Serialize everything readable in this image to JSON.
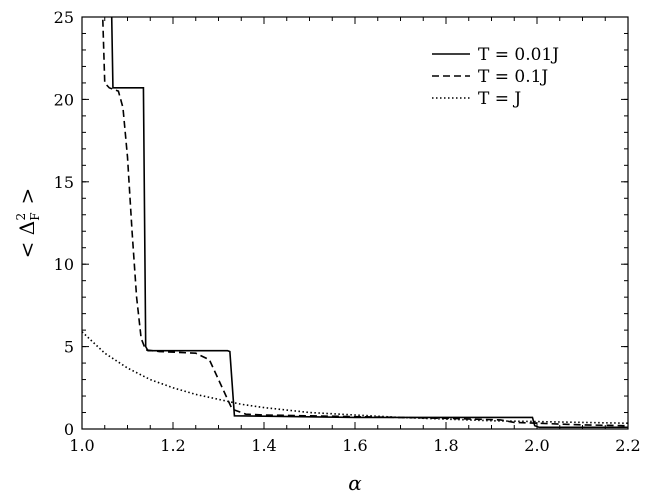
{
  "chart_data": {
    "type": "line",
    "title": "",
    "xlabel": "α",
    "ylabel": "< Δ_F^2 >",
    "xlim": [
      1.0,
      2.2
    ],
    "ylim": [
      0,
      25
    ],
    "x_ticks": [
      "1.0",
      "1.2",
      "1.4",
      "1.6",
      "1.8",
      "2.0",
      "2.2"
    ],
    "y_ticks": [
      "0",
      "5",
      "10",
      "15",
      "20",
      "25"
    ],
    "grid": false,
    "legend_position": "top-right",
    "series": [
      {
        "name": "T = 0.01J",
        "style": "solid",
        "points": [
          [
            1.065,
            25.5
          ],
          [
            1.068,
            20.7
          ],
          [
            1.135,
            20.7
          ],
          [
            1.14,
            5.0
          ],
          [
            1.145,
            4.75
          ],
          [
            1.32,
            4.75
          ],
          [
            1.325,
            4.7
          ],
          [
            1.335,
            0.8
          ],
          [
            1.4,
            0.78
          ],
          [
            1.6,
            0.7
          ],
          [
            1.8,
            0.7
          ],
          [
            1.99,
            0.7
          ],
          [
            1.995,
            0.2
          ],
          [
            2.005,
            0.1
          ],
          [
            2.2,
            0.1
          ]
        ]
      },
      {
        "name": "T = 0.1J",
        "style": "dashed",
        "points": [
          [
            1.045,
            25.5
          ],
          [
            1.05,
            21.0
          ],
          [
            1.06,
            20.7
          ],
          [
            1.08,
            20.5
          ],
          [
            1.09,
            19.5
          ],
          [
            1.1,
            16.5
          ],
          [
            1.11,
            12.0
          ],
          [
            1.12,
            8.0
          ],
          [
            1.13,
            5.5
          ],
          [
            1.14,
            4.8
          ],
          [
            1.17,
            4.7
          ],
          [
            1.25,
            4.6
          ],
          [
            1.28,
            4.2
          ],
          [
            1.3,
            3.0
          ],
          [
            1.32,
            1.8
          ],
          [
            1.33,
            1.2
          ],
          [
            1.36,
            0.9
          ],
          [
            1.4,
            0.85
          ],
          [
            1.6,
            0.75
          ],
          [
            1.8,
            0.65
          ],
          [
            1.92,
            0.55
          ],
          [
            1.95,
            0.4
          ],
          [
            2.0,
            0.35
          ],
          [
            2.1,
            0.25
          ],
          [
            2.2,
            0.2
          ]
        ]
      },
      {
        "name": "T = J",
        "style": "dotted",
        "points": [
          [
            1.0,
            5.9
          ],
          [
            1.05,
            4.6
          ],
          [
            1.1,
            3.7
          ],
          [
            1.15,
            3.0
          ],
          [
            1.2,
            2.5
          ],
          [
            1.25,
            2.1
          ],
          [
            1.3,
            1.8
          ],
          [
            1.35,
            1.5
          ],
          [
            1.4,
            1.3
          ],
          [
            1.5,
            1.0
          ],
          [
            1.6,
            0.85
          ],
          [
            1.7,
            0.7
          ],
          [
            1.8,
            0.6
          ],
          [
            1.9,
            0.5
          ],
          [
            2.0,
            0.45
          ],
          [
            2.1,
            0.4
          ],
          [
            2.2,
            0.35
          ]
        ]
      }
    ]
  }
}
